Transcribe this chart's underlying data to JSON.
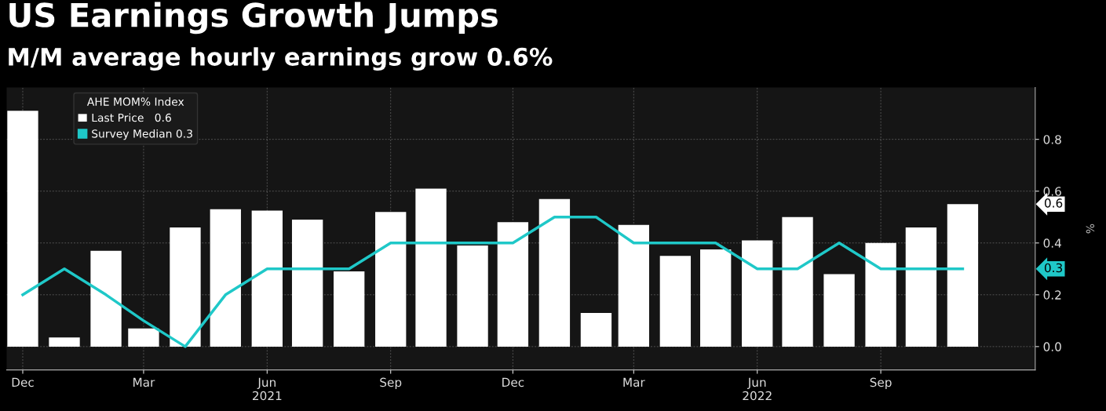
{
  "chart_data": {
    "type": "bar",
    "title": "US Earnings Growth Jumps",
    "subtitle": "M/M average hourly earnings grow 0.6%",
    "ylabel": "%",
    "legend_title": "AHE MOM% Index",
    "x": [
      "2020-12",
      "2021-01",
      "2021-02",
      "2021-03",
      "2021-04",
      "2021-05",
      "2021-06",
      "2021-07",
      "2021-08",
      "2021-09",
      "2021-10",
      "2021-11",
      "2021-12",
      "2022-01",
      "2022-02",
      "2022-03",
      "2022-04",
      "2022-05",
      "2022-06",
      "2022-07",
      "2022-08",
      "2022-09",
      "2022-10",
      "2022-11"
    ],
    "series": [
      {
        "name": "Last Price   0.6",
        "color": "#ffffff",
        "values": [
          0.91,
          0.035,
          0.37,
          0.07,
          0.46,
          0.53,
          0.525,
          0.49,
          0.29,
          0.52,
          0.61,
          0.39,
          0.48,
          0.57,
          0.13,
          0.47,
          0.35,
          0.375,
          0.41,
          0.5,
          0.28,
          0.4,
          0.46,
          0.55
        ]
      },
      {
        "name": "Survey Median 0.3",
        "type": "line",
        "color": "#1fc8c8",
        "values": [
          0.2,
          0.3,
          0.2,
          0.1,
          0.0,
          0.2,
          0.3,
          0.3,
          0.3,
          0.4,
          0.4,
          0.4,
          0.4,
          0.5,
          0.5,
          0.4,
          0.4,
          0.4,
          0.3,
          0.3,
          0.4,
          0.3,
          0.3,
          0.3
        ]
      }
    ],
    "annotations": [
      "0.6",
      "0.3"
    ],
    "xlim": [
      "2020-11-19",
      "2022-12-25"
    ],
    "xticks": [
      {
        "value": "2020-12-01",
        "label": "Dec"
      },
      {
        "value": "2021-03-01",
        "label": "Mar"
      },
      {
        "value": "2021-06-01",
        "label": "Jun\n2021"
      },
      {
        "value": "2021-09-01",
        "label": "Sep"
      },
      {
        "value": "2021-12-01",
        "label": "Dec"
      },
      {
        "value": "2022-03-01",
        "label": "Mar"
      },
      {
        "value": "2022-06-01",
        "label": "Jun\n2022"
      },
      {
        "value": "2022-09-01",
        "label": "Sep"
      }
    ],
    "ylim": [
      -0.09,
      1.0
    ],
    "yticks": [
      {
        "value": 0,
        "label": "0.0"
      },
      0.2,
      0.4,
      0.6,
      0.8
    ],
    "grid": true,
    "legend": "top left",
    "line_style": "solid",
    "marker": "none"
  }
}
